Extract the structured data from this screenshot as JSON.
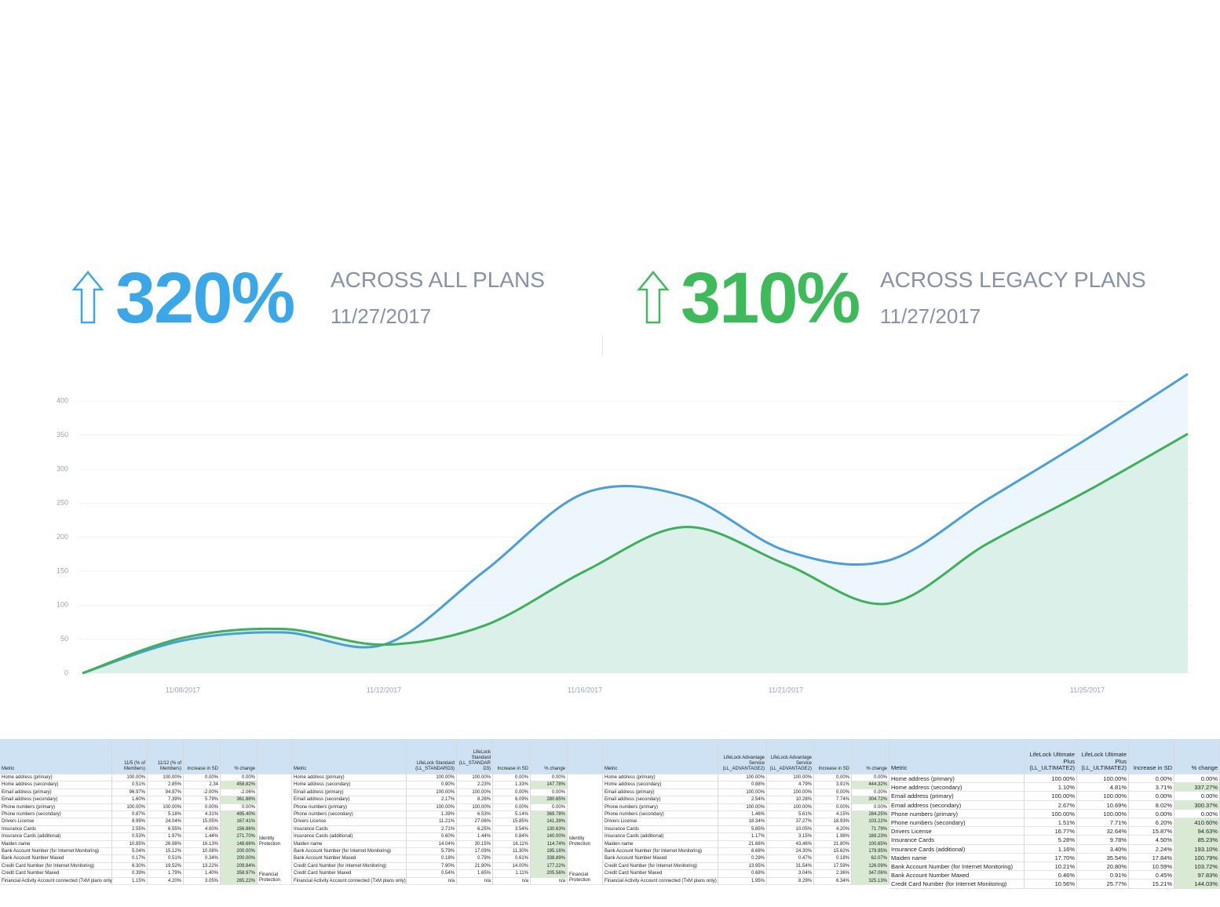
{
  "stats": [
    {
      "value": "320%",
      "label": "ACROSS ALL PLANS",
      "date": "11/27/2017",
      "color": "#3aa8e8"
    },
    {
      "value": "310%",
      "label": "ACROSS LEGACY PLANS",
      "date": "11/27/2017",
      "color": "#3dba5a"
    }
  ],
  "chart_data": {
    "type": "area",
    "categories": [
      null,
      "11/08/2017",
      null,
      "11/12/2017",
      null,
      "11/16/2017",
      null,
      "11/21/2017",
      null,
      null,
      "11/25/2017",
      null
    ],
    "series": [
      {
        "color": "#4a9fd8",
        "fill": "#e9f4fb",
        "values": [
          0,
          48,
          60,
          42,
          150,
          265,
          260,
          180,
          165,
          255,
          345,
          440
        ]
      },
      {
        "color": "#3db05a",
        "fill": "#d9efe6",
        "values": [
          0,
          52,
          65,
          42,
          70,
          150,
          215,
          160,
          102,
          190,
          268,
          352
        ]
      }
    ],
    "ylim": [
      0,
      450
    ],
    "yticks": [
      0,
      50,
      100,
      150,
      200,
      250,
      300,
      350,
      400
    ],
    "grid": true
  },
  "groups": [
    [
      "Identity Protection",
      "Financial Protection"
    ],
    [
      "Identity Protection",
      "Financial Protection"
    ]
  ],
  "tables": [
    {
      "columns": [
        "Metric",
        "11/5 (% of Members)",
        "11/12 (% of Members)",
        "Increase in SD",
        "% change"
      ],
      "highlight_rows": [
        1,
        3,
        5,
        6,
        7,
        8,
        9,
        10,
        11,
        12,
        13,
        14
      ],
      "rows": [
        [
          "Home address (primary)",
          "100.00%",
          "100.00%",
          "0.00%",
          "0.00%"
        ],
        [
          "Home address (secondary)",
          "0.51%",
          "2.85%",
          "2.34",
          "458.82%"
        ],
        [
          "Email address (primary)",
          "96.97%",
          "94.97%",
          "-2.00%",
          "-2.06%"
        ],
        [
          "Email address (secondary)",
          "1.60%",
          "7.39%",
          "5.79%",
          "361.88%"
        ],
        [
          "Phone numbers (primary)",
          "100.00%",
          "100.00%",
          "0.00%",
          "0.00%"
        ],
        [
          "Phone numbers (secondary)",
          "0.87%",
          "5.18%",
          "4.31%",
          "495.40%"
        ],
        [
          "Drivers License",
          "8.99%",
          "24.04%",
          "15.05%",
          "167.41%"
        ],
        [
          "Insurance Cards",
          "2.55%",
          "6.55%",
          "4.00%",
          "156.86%"
        ],
        [
          "Insurance Cards (additional)",
          "0.53%",
          "1.97%",
          "1.44%",
          "271.70%"
        ],
        [
          "Maiden name",
          "10.85%",
          "26.98%",
          "16.13%",
          "148.66%"
        ],
        [
          "Bank Account Number (for Internet Monitoring)",
          "5.04%",
          "15.12%",
          "10.08%",
          "200.00%"
        ],
        [
          "Bank Account Number Maxed",
          "0.17%",
          "0.51%",
          "0.34%",
          "200.00%"
        ],
        [
          "Credit Card Number (for Internet Monitoring)",
          "6.30%",
          "19.52%",
          "13.22%",
          "209.84%"
        ],
        [
          "Credit Card Number Maxed",
          "0.39%",
          "1.79%",
          "1.40%",
          "358.97%"
        ],
        [
          "Financial Activity Account connected (TxM plans only)",
          "1.15%",
          "4.20%",
          "3.05%",
          "265.22%"
        ]
      ]
    },
    {
      "columns": [
        "Metric",
        "LifeLock Standard (LL_STANDARD3)",
        "LifeLock Standard (LL_STANDAR D3)",
        "Increase in SD",
        "% change"
      ],
      "highlight_rows": [
        1,
        3,
        5,
        6,
        7,
        8,
        9,
        10,
        11,
        12,
        13
      ],
      "rows": [
        [
          "Home address (primary)",
          "100.00%",
          "100.00%",
          "0.00%",
          "0.00%"
        ],
        [
          "Home address (secondary)",
          "0.90%",
          "2.23%",
          "1.33%",
          "147.78%"
        ],
        [
          "Email address (primary)",
          "100.00%",
          "100.00%",
          "0.00%",
          "0.00%"
        ],
        [
          "Email address (secondary)",
          "2.17%",
          "8.26%",
          "6.09%",
          "280.65%"
        ],
        [
          "Phone numbers (primary)",
          "100.00%",
          "100.00%",
          "0.00%",
          "0.00%"
        ],
        [
          "Phone numbers (secondary)",
          "1.39%",
          "6.53%",
          "5.14%",
          "369.78%"
        ],
        [
          "Drivers License",
          "11.21%",
          "27.06%",
          "15.85%",
          "141.39%"
        ],
        [
          "Insurance Cards",
          "2.71%",
          "6.25%",
          "3.54%",
          "130.63%"
        ],
        [
          "Insurance Cards (additional)",
          "0.60%",
          "1.44%",
          "0.84%",
          "140.00%"
        ],
        [
          "Maiden name",
          "14.04%",
          "30.15%",
          "16.11%",
          "114.74%"
        ],
        [
          "Bank Account Number (for Internet Monitoring)",
          "5.79%",
          "17.09%",
          "11.30%",
          "195.16%"
        ],
        [
          "Bank Account Number Maxed",
          "0.18%",
          "0.79%",
          "0.61%",
          "338.89%"
        ],
        [
          "Credit Card Number (for Internet Monitoring)",
          "7.90%",
          "21.90%",
          "14.00%",
          "177.22%"
        ],
        [
          "Credit Card Number Maxed",
          "0.54%",
          "1.65%",
          "1.11%",
          "205.56%"
        ],
        [
          "Financial Activity Account connected (TxM plans only)",
          "n/a",
          "n/a",
          "n/a",
          "n/a"
        ]
      ]
    },
    {
      "columns": [
        "Metric",
        "LifeLock Advantage Service (LL_ADVANTAGE2)",
        "LifeLock Advantage Service (LL_ADVANTAGE2)",
        "Increase in SD",
        "% change"
      ],
      "highlight_rows": [
        1,
        3,
        5,
        6,
        7,
        8,
        9,
        10,
        11,
        12,
        13,
        14
      ],
      "rows": [
        [
          "Home address (primary)",
          "100.00%",
          "100.00%",
          "0.00%",
          "0.00%"
        ],
        [
          "Home address (secondary)",
          "0.88%",
          "4.79%",
          "3.91%",
          "444.32%"
        ],
        [
          "Email address (primary)",
          "100.00%",
          "100.00%",
          "0.00%",
          "0.00%"
        ],
        [
          "Email address (secondary)",
          "2.54%",
          "10.28%",
          "7.74%",
          "304.72%"
        ],
        [
          "Phone numbers (primary)",
          "100.00%",
          "100.00%",
          "0.00%",
          "0.00%"
        ],
        [
          "Phone numbers (secondary)",
          "1.46%",
          "5.61%",
          "4.15%",
          "284.25%"
        ],
        [
          "Drivers License",
          "18.34%",
          "37.27%",
          "18.93%",
          "103.22%"
        ],
        [
          "Insurance Cards",
          "5.85%",
          "10.05%",
          "4.20%",
          "71.79%"
        ],
        [
          "Insurance Cards (additional)",
          "1.17%",
          "3.15%",
          "1.98%",
          "169.23%"
        ],
        [
          "Maiden name",
          "21.66%",
          "43.46%",
          "21.80%",
          "100.65%"
        ],
        [
          "Bank Account Number (for Internet Monitoring)",
          "8.68%",
          "24.30%",
          "15.62%",
          "179.95%"
        ],
        [
          "Bank Account Number Maxed",
          "0.29%",
          "0.47%",
          "0.18%",
          "62.07%"
        ],
        [
          "Credit Card Number (for Internet Monitoring)",
          "13.95%",
          "31.54%",
          "17.59%",
          "126.09%"
        ],
        [
          "Credit Card Number Maxed",
          "0.68%",
          "3.04%",
          "2.36%",
          "347.06%"
        ],
        [
          "Financial Activity Account connected (TxM plans only)",
          "1.95%",
          "8.29%",
          "6.34%",
          "325.13%"
        ]
      ]
    },
    {
      "columns": [
        "Metric",
        "LifeLock Ultimate Plus (LL_ULTIMATE2)",
        "LifeLock Ultimate Plus (LL_ULTIMATE2)",
        "Increase in SD",
        "% change"
      ],
      "highlight_rows": [
        1,
        3,
        5,
        6,
        7,
        8,
        9,
        10,
        11,
        12
      ],
      "rows": [
        [
          "Home address (primary)",
          "100.00%",
          "100.00%",
          "0.00%",
          "0.00%"
        ],
        [
          "Home address (secondary)",
          "1.10%",
          "4.81%",
          "3.71%",
          "337.27%"
        ],
        [
          "Email address (primary)",
          "100.00%",
          "100.00%",
          "0.00%",
          "0.00%"
        ],
        [
          "Email address (secondary)",
          "2.67%",
          "10.69%",
          "8.02%",
          "300.37%"
        ],
        [
          "Phone numbers (primary)",
          "100.00%",
          "100.00%",
          "0.00%",
          "0.00%"
        ],
        [
          "Phone numbers (secondary)",
          "1.51%",
          "7.71%",
          "6.20%",
          "410.60%"
        ],
        [
          "Drivers License",
          "16.77%",
          "32.64%",
          "15.87%",
          "94.63%"
        ],
        [
          "Insurance Cards",
          "5.28%",
          "9.78%",
          "4.50%",
          "85.23%"
        ],
        [
          "Insurance Cards (additional)",
          "1.16%",
          "3.40%",
          "2.24%",
          "193.10%"
        ],
        [
          "Maiden name",
          "17.70%",
          "35.54%",
          "17.84%",
          "100.79%"
        ],
        [
          "Bank Account Number (for Internet Monitoring)",
          "10.21%",
          "20.80%",
          "10.59%",
          "103.72%"
        ],
        [
          "Bank Account Number Maxed",
          "0.46%",
          "0.91%",
          "0.45%",
          "97.83%"
        ],
        [
          "Credit Card Number (for Internet Monitoring)",
          "10.56%",
          "25.77%",
          "15.21%",
          "144.03%"
        ]
      ]
    }
  ]
}
